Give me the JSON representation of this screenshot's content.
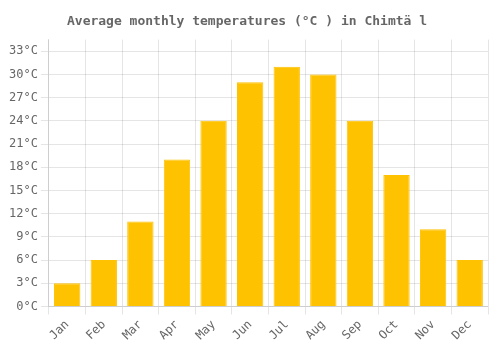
{
  "chart_data": {
    "type": "bar",
    "title": "Average monthly temperatures (°C ) in Chimtä l",
    "categories": [
      "Jan",
      "Feb",
      "Mar",
      "Apr",
      "May",
      "Jun",
      "Jul",
      "Aug",
      "Sep",
      "Oct",
      "Nov",
      "Dec"
    ],
    "values": [
      3,
      6,
      11,
      19,
      24,
      29,
      31,
      30,
      24,
      17,
      10,
      6
    ],
    "color": "#FFC200",
    "ylim": [
      0,
      34.5
    ],
    "yticks": [
      {
        "value": 0,
        "label": "0°C"
      },
      {
        "value": 3,
        "label": "3°C"
      },
      {
        "value": 6,
        "label": "6°C"
      },
      {
        "value": 9,
        "label": "9°C"
      },
      {
        "value": 12,
        "label": "12°C"
      },
      {
        "value": 15,
        "label": "15°C"
      },
      {
        "value": 18,
        "label": "18°C"
      },
      {
        "value": 21,
        "label": "21°C"
      },
      {
        "value": 24,
        "label": "24°C"
      },
      {
        "value": 27,
        "label": "27°C"
      },
      {
        "value": 30,
        "label": "30°C"
      },
      {
        "value": 33,
        "label": "33°C"
      }
    ],
    "grid": true
  }
}
